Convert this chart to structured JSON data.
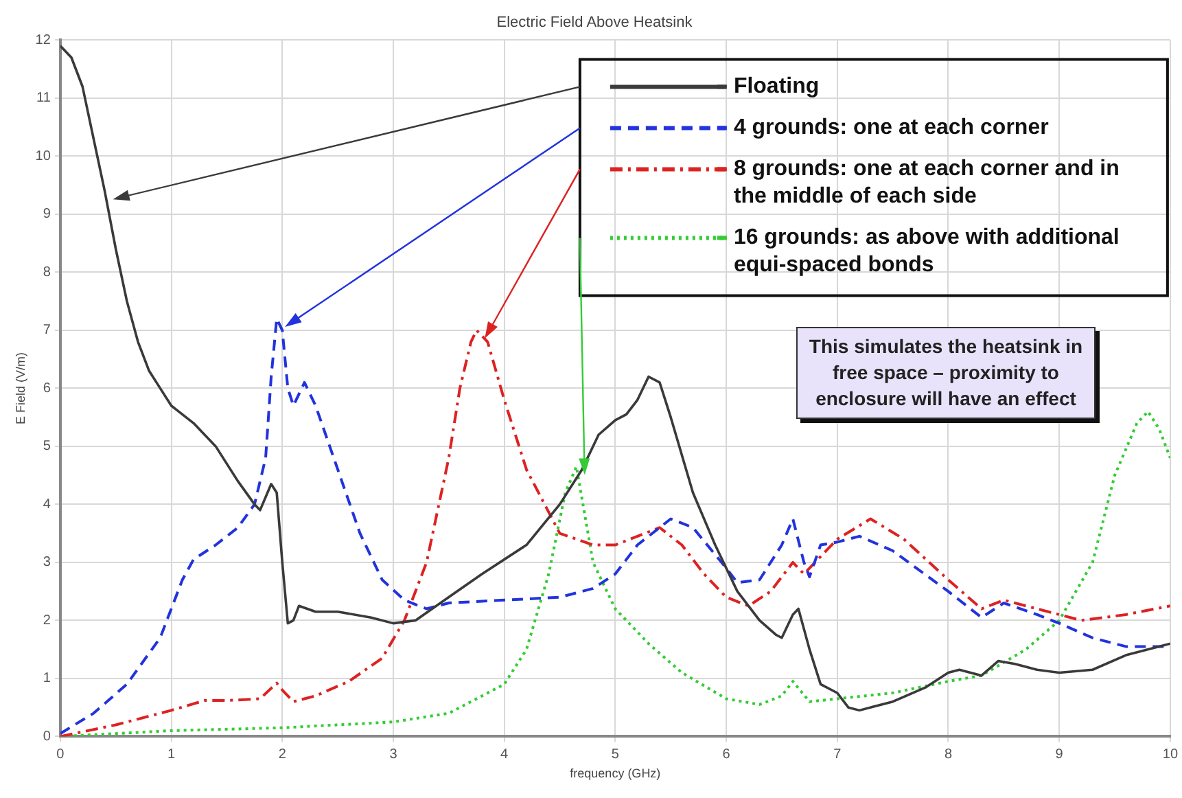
{
  "chart_data": {
    "type": "line",
    "title": "Electric Field Above Heatsink",
    "xlabel": "frequency (GHz)",
    "ylabel": "E Field (V/m)",
    "xlim": [
      0,
      10
    ],
    "xticks": [
      0,
      1,
      2,
      3,
      4,
      5,
      6,
      7,
      8,
      9,
      10
    ],
    "ylim": [
      0,
      12
    ],
    "yticks": [
      0,
      1,
      2,
      3,
      4,
      5,
      6,
      7,
      8,
      9,
      10,
      11,
      12
    ],
    "grid": true,
    "legend": "top right",
    "marker": "none",
    "annotations": [
      "This simulates the heatsink in free space – proximity to enclosure will have an effect"
    ],
    "series": [
      {
        "name": "Floating",
        "color": "#3a3a3a",
        "line_style": "solid",
        "x": [
          0,
          0.1,
          0.2,
          0.3,
          0.4,
          0.5,
          0.6,
          0.7,
          0.8,
          0.9,
          1.0,
          1.2,
          1.4,
          1.6,
          1.75,
          1.8,
          1.9,
          1.95,
          2.0,
          2.05,
          2.1,
          2.15,
          2.3,
          2.5,
          2.8,
          3.0,
          3.2,
          3.5,
          3.8,
          4.2,
          4.5,
          4.7,
          4.85,
          5.0,
          5.1,
          5.2,
          5.3,
          5.4,
          5.5,
          5.7,
          5.9,
          6.1,
          6.3,
          6.45,
          6.5,
          6.6,
          6.65,
          6.75,
          6.85,
          7.0,
          7.1,
          7.2,
          7.5,
          7.8,
          8.0,
          8.1,
          8.3,
          8.45,
          8.6,
          8.8,
          9.0,
          9.3,
          9.6,
          10
        ],
        "values": [
          11.9,
          11.7,
          11.2,
          10.3,
          9.4,
          8.4,
          7.5,
          6.8,
          6.3,
          6.0,
          5.7,
          5.4,
          5.0,
          4.4,
          4.0,
          3.9,
          4.35,
          4.2,
          3.0,
          1.95,
          2.0,
          2.25,
          2.15,
          2.15,
          2.05,
          1.95,
          2.0,
          2.4,
          2.8,
          3.3,
          4.0,
          4.6,
          5.2,
          5.45,
          5.55,
          5.8,
          6.2,
          6.1,
          5.5,
          4.2,
          3.3,
          2.5,
          2.0,
          1.75,
          1.7,
          2.1,
          2.2,
          1.5,
          0.9,
          0.75,
          0.5,
          0.45,
          0.6,
          0.85,
          1.1,
          1.15,
          1.05,
          1.3,
          1.25,
          1.15,
          1.1,
          1.15,
          1.4,
          1.6
        ]
      },
      {
        "name": "4 grounds: one at each corner",
        "color": "#2233dd",
        "line_style": "dashed",
        "x": [
          0,
          0.3,
          0.6,
          0.9,
          1.0,
          1.1,
          1.2,
          1.4,
          1.6,
          1.75,
          1.85,
          1.9,
          1.95,
          2.0,
          2.05,
          2.1,
          2.2,
          2.3,
          2.5,
          2.7,
          2.9,
          3.1,
          3.3,
          3.5,
          4.0,
          4.5,
          4.8,
          5.0,
          5.2,
          5.5,
          5.7,
          6.0,
          6.1,
          6.3,
          6.5,
          6.6,
          6.7,
          6.75,
          6.85,
          7.0,
          7.2,
          7.5,
          8.0,
          8.3,
          8.5,
          8.8,
          9.0,
          9.3,
          9.6,
          10
        ],
        "values": [
          0.05,
          0.4,
          0.9,
          1.7,
          2.2,
          2.7,
          3.05,
          3.3,
          3.6,
          4.0,
          4.8,
          6.2,
          7.2,
          7.0,
          6.0,
          5.7,
          6.1,
          5.7,
          4.6,
          3.5,
          2.7,
          2.35,
          2.2,
          2.3,
          2.35,
          2.4,
          2.55,
          2.8,
          3.3,
          3.75,
          3.6,
          2.9,
          2.65,
          2.7,
          3.3,
          3.75,
          3.0,
          2.75,
          3.3,
          3.35,
          3.45,
          3.2,
          2.5,
          2.05,
          2.3,
          2.1,
          1.95,
          1.7,
          1.55,
          1.55
        ]
      },
      {
        "name": "8 grounds: one at each corner and in the middle of each side",
        "color": "#dd2222",
        "line_style": "dashdot",
        "x": [
          0,
          0.5,
          1.0,
          1.3,
          1.5,
          1.8,
          1.95,
          2.0,
          2.1,
          2.3,
          2.6,
          2.9,
          3.1,
          3.3,
          3.5,
          3.6,
          3.7,
          3.75,
          3.85,
          4.0,
          4.2,
          4.5,
          4.8,
          5.0,
          5.2,
          5.4,
          5.6,
          5.8,
          6.0,
          6.2,
          6.4,
          6.6,
          6.7,
          6.8,
          7.0,
          7.3,
          7.6,
          8.0,
          8.3,
          8.5,
          8.8,
          9.2,
          9.6,
          10
        ],
        "values": [
          0,
          0.2,
          0.45,
          0.62,
          0.62,
          0.65,
          0.92,
          0.8,
          0.6,
          0.7,
          0.95,
          1.35,
          2.0,
          3.0,
          4.8,
          6.0,
          6.8,
          7.0,
          6.8,
          5.8,
          4.6,
          3.5,
          3.3,
          3.3,
          3.45,
          3.6,
          3.3,
          2.8,
          2.4,
          2.25,
          2.5,
          3.0,
          2.8,
          3.0,
          3.4,
          3.75,
          3.4,
          2.7,
          2.2,
          2.35,
          2.2,
          2.0,
          2.1,
          2.25
        ]
      },
      {
        "name": "16 grounds: as above with additional equi-spaced bonds",
        "color": "#33cc33",
        "line_style": "dotted",
        "x": [
          0,
          1,
          2,
          3,
          3.5,
          4.0,
          4.2,
          4.4,
          4.55,
          4.65,
          4.8,
          5.0,
          5.3,
          5.6,
          6.0,
          6.3,
          6.5,
          6.6,
          6.75,
          7.0,
          7.5,
          8.0,
          8.3,
          8.7,
          9.0,
          9.3,
          9.5,
          9.7,
          9.8,
          9.9,
          10
        ],
        "values": [
          0,
          0.1,
          0.15,
          0.25,
          0.4,
          0.9,
          1.5,
          2.8,
          4.2,
          4.65,
          3.0,
          2.2,
          1.6,
          1.1,
          0.65,
          0.55,
          0.7,
          0.95,
          0.6,
          0.65,
          0.75,
          0.95,
          1.05,
          1.5,
          2.0,
          3.0,
          4.5,
          5.4,
          5.6,
          5.3,
          4.8
        ]
      }
    ]
  }
}
